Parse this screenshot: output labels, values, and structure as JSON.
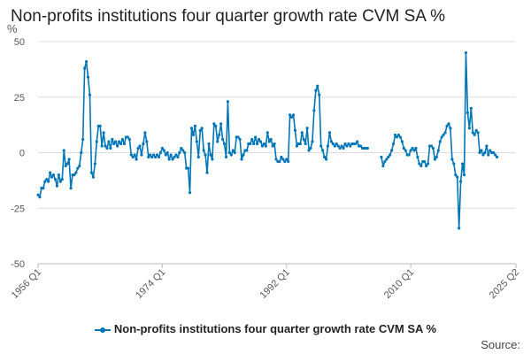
{
  "chart_data": {
    "type": "line",
    "title": "Non-profits institutions four quarter growth rate CVM SA %",
    "ylabel": "%",
    "xlabel": "",
    "ylim": [
      -50,
      50
    ],
    "yticks": [
      50,
      25,
      0,
      -25,
      -50
    ],
    "x_range": [
      1956.0,
      2025.25
    ],
    "xticks": [
      {
        "label": "1956 Q1",
        "value": 1956.0
      },
      {
        "label": "1974 Q1",
        "value": 1974.0
      },
      {
        "label": "1992 Q1",
        "value": 1992.0
      },
      {
        "label": "2010 Q1",
        "value": 2010.0
      },
      {
        "label": "2025 Q2",
        "value": 2025.25
      }
    ],
    "grid": true,
    "legend_position": "bottom",
    "series": [
      {
        "name": "Non-profits institutions four quarter growth rate CVM SA %",
        "color": "#0076b6",
        "points": [
          [
            1956.0,
            -19
          ],
          [
            1956.25,
            -20
          ],
          [
            1956.5,
            -16
          ],
          [
            1956.75,
            -16
          ],
          [
            1957.0,
            -13
          ],
          [
            1957.25,
            -12
          ],
          [
            1957.5,
            -13
          ],
          [
            1957.75,
            -9
          ],
          [
            1958.0,
            -11
          ],
          [
            1958.25,
            -10
          ],
          [
            1958.5,
            -12
          ],
          [
            1958.75,
            -15
          ],
          [
            1959.0,
            -10
          ],
          [
            1959.25,
            -13
          ],
          [
            1959.5,
            -12
          ],
          [
            1959.75,
            1
          ],
          [
            1960.0,
            -6
          ],
          [
            1960.25,
            -5
          ],
          [
            1960.5,
            -3
          ],
          [
            1960.75,
            -16
          ],
          [
            1961.0,
            -10
          ],
          [
            1961.25,
            -10
          ],
          [
            1961.5,
            -9
          ],
          [
            1961.75,
            -7
          ],
          [
            1962.0,
            -6
          ],
          [
            1962.25,
            0
          ],
          [
            1962.5,
            6
          ],
          [
            1962.75,
            38
          ],
          [
            1963.0,
            41
          ],
          [
            1963.25,
            34
          ],
          [
            1963.5,
            26
          ],
          [
            1963.75,
            -9
          ],
          [
            1964.0,
            -11
          ],
          [
            1964.25,
            -5
          ],
          [
            1964.5,
            5
          ],
          [
            1964.75,
            12
          ],
          [
            1965.0,
            12
          ],
          [
            1965.25,
            3
          ],
          [
            1965.5,
            9
          ],
          [
            1965.75,
            3
          ],
          [
            1966.0,
            2
          ],
          [
            1966.25,
            5
          ],
          [
            1966.5,
            2
          ],
          [
            1966.75,
            6
          ],
          [
            1967.0,
            4
          ],
          [
            1967.25,
            5
          ],
          [
            1967.5,
            3
          ],
          [
            1967.75,
            5
          ],
          [
            1968.0,
            4
          ],
          [
            1968.25,
            6
          ],
          [
            1968.5,
            4
          ],
          [
            1968.75,
            7
          ],
          [
            1969.0,
            7
          ],
          [
            1969.25,
            6
          ],
          [
            1969.5,
            -1
          ],
          [
            1969.75,
            -2
          ],
          [
            1970.0,
            -1
          ],
          [
            1970.25,
            -3
          ],
          [
            1970.5,
            2
          ],
          [
            1970.75,
            3
          ],
          [
            1971.0,
            -1
          ],
          [
            1971.25,
            4
          ],
          [
            1971.5,
            9
          ],
          [
            1971.75,
            5
          ],
          [
            1972.0,
            -2
          ],
          [
            1972.25,
            -1
          ],
          [
            1972.5,
            -2
          ],
          [
            1972.75,
            -1
          ],
          [
            1973.0,
            -2
          ],
          [
            1973.25,
            -1
          ],
          [
            1973.5,
            -2
          ],
          [
            1973.75,
            0
          ],
          [
            1974.0,
            2
          ],
          [
            1974.25,
            1
          ],
          [
            1974.5,
            -1
          ],
          [
            1974.75,
            0
          ],
          [
            1975.0,
            -3
          ],
          [
            1975.25,
            -1
          ],
          [
            1975.5,
            -3
          ],
          [
            1975.75,
            -2
          ],
          [
            1976.0,
            -1
          ],
          [
            1976.25,
            -2
          ],
          [
            1976.5,
            0
          ],
          [
            1976.75,
            2
          ],
          [
            1977.0,
            1
          ],
          [
            1977.25,
            0
          ],
          [
            1977.5,
            -7
          ],
          [
            1977.75,
            -7
          ],
          [
            1978.0,
            -18
          ],
          [
            1978.25,
            11
          ],
          [
            1978.5,
            8
          ],
          [
            1978.75,
            12
          ],
          [
            1979.0,
            5
          ],
          [
            1979.25,
            -2
          ],
          [
            1979.5,
            10
          ],
          [
            1979.75,
            11
          ],
          [
            1980.0,
            1
          ],
          [
            1980.25,
            -1
          ],
          [
            1980.5,
            -9
          ],
          [
            1980.75,
            4
          ],
          [
            1981.0,
            -1
          ],
          [
            1981.25,
            -3
          ],
          [
            1981.5,
            13
          ],
          [
            1981.75,
            12
          ],
          [
            1982.0,
            5
          ],
          [
            1982.25,
            8
          ],
          [
            1982.5,
            13
          ],
          [
            1982.75,
            6
          ],
          [
            1983.0,
            4
          ],
          [
            1983.25,
            -2
          ],
          [
            1983.5,
            23
          ],
          [
            1983.75,
            0
          ],
          [
            1984.0,
            -1
          ],
          [
            1984.25,
            1
          ],
          [
            1984.5,
            0
          ],
          [
            1984.75,
            7
          ],
          [
            1985.0,
            7
          ],
          [
            1985.25,
            6
          ],
          [
            1985.5,
            -3
          ],
          [
            1985.75,
            -1
          ],
          [
            1986.0,
            1
          ],
          [
            1986.25,
            1
          ],
          [
            1986.5,
            4
          ],
          [
            1986.75,
            4
          ],
          [
            1987.0,
            6
          ],
          [
            1987.25,
            4
          ],
          [
            1987.5,
            7
          ],
          [
            1987.75,
            4
          ],
          [
            1988.0,
            6
          ],
          [
            1988.25,
            5
          ],
          [
            1988.5,
            3
          ],
          [
            1988.75,
            4
          ],
          [
            1989.0,
            3
          ],
          [
            1989.25,
            9
          ],
          [
            1989.5,
            5
          ],
          [
            1989.75,
            6
          ],
          [
            1990.0,
            3
          ],
          [
            1990.25,
            4
          ],
          [
            1990.5,
            -3
          ],
          [
            1990.75,
            -4
          ],
          [
            1991.0,
            -4
          ],
          [
            1991.25,
            -2
          ],
          [
            1991.5,
            -3
          ],
          [
            1991.75,
            -4
          ],
          [
            1992.0,
            -3
          ],
          [
            1992.25,
            -4
          ],
          [
            1992.5,
            17
          ],
          [
            1992.75,
            16
          ],
          [
            1993.0,
            17
          ],
          [
            1993.25,
            10
          ],
          [
            1993.5,
            3
          ],
          [
            1993.75,
            4
          ],
          [
            1994.0,
            4
          ],
          [
            1994.25,
            9
          ],
          [
            1994.5,
            6
          ],
          [
            1994.75,
            4
          ],
          [
            1995.0,
            11
          ],
          [
            1995.25,
            1
          ],
          [
            1995.5,
            2
          ],
          [
            1995.75,
            5
          ],
          [
            1996.0,
            19
          ],
          [
            1996.25,
            28
          ],
          [
            1996.5,
            30
          ],
          [
            1996.75,
            26
          ],
          [
            1997.0,
            3
          ],
          [
            1997.25,
            1
          ],
          [
            1997.5,
            -2
          ],
          [
            1997.75,
            -3
          ],
          [
            1998.0,
            3
          ],
          [
            1998.25,
            9
          ],
          [
            1998.5,
            5
          ],
          [
            1998.75,
            4
          ],
          [
            1999.0,
            3
          ],
          [
            1999.25,
            4
          ],
          [
            1999.5,
            3
          ],
          [
            1999.75,
            2
          ],
          [
            2000.0,
            3
          ],
          [
            2000.25,
            2
          ],
          [
            2000.5,
            4
          ],
          [
            2000.75,
            3
          ],
          [
            2001.0,
            4
          ],
          [
            2001.25,
            3
          ],
          [
            2001.5,
            4
          ],
          [
            2001.75,
            4
          ],
          [
            2002.0,
            4
          ],
          [
            2002.25,
            5
          ],
          [
            2002.5,
            3
          ],
          [
            2002.75,
            3
          ],
          [
            2003.0,
            2
          ],
          [
            2003.25,
            2
          ],
          [
            2003.5,
            2
          ],
          [
            2003.75,
            2
          ],
          null,
          [
            2005.75,
            -2
          ],
          [
            2006.0,
            -6
          ],
          [
            2006.25,
            -4
          ],
          [
            2006.5,
            -3
          ],
          [
            2006.75,
            -2
          ],
          [
            2007.0,
            -1
          ],
          [
            2007.25,
            1
          ],
          [
            2007.5,
            4
          ],
          [
            2007.75,
            8
          ],
          [
            2008.0,
            7
          ],
          [
            2008.25,
            8
          ],
          [
            2008.5,
            7
          ],
          [
            2008.75,
            5
          ],
          [
            2009.0,
            2
          ],
          [
            2009.25,
            1
          ],
          [
            2009.5,
            -1
          ],
          [
            2009.75,
            -1
          ],
          [
            2010.0,
            1
          ],
          [
            2010.25,
            2
          ],
          [
            2010.5,
            1
          ],
          [
            2010.75,
            2
          ],
          [
            2011.0,
            -2
          ],
          [
            2011.25,
            -5
          ],
          [
            2011.5,
            -6
          ],
          [
            2011.75,
            -4
          ],
          [
            2012.0,
            -4
          ],
          [
            2012.25,
            -6
          ],
          [
            2012.5,
            -5
          ],
          [
            2012.75,
            3
          ],
          [
            2013.0,
            3
          ],
          [
            2013.25,
            2
          ],
          [
            2013.5,
            -3
          ],
          [
            2013.75,
            -2
          ],
          [
            2014.0,
            1
          ],
          [
            2014.25,
            5
          ],
          [
            2014.5,
            7
          ],
          [
            2014.75,
            8
          ],
          [
            2015.0,
            9
          ],
          [
            2015.25,
            12
          ],
          [
            2015.5,
            13
          ],
          [
            2015.75,
            11
          ],
          [
            2016.0,
            -3
          ],
          [
            2016.25,
            -5
          ],
          [
            2016.5,
            -10
          ],
          [
            2016.75,
            -11
          ],
          [
            2017.0,
            -34
          ],
          [
            2017.25,
            -13
          ],
          [
            2017.5,
            -5
          ],
          [
            2017.75,
            -10
          ],
          [
            2018.0,
            45
          ],
          [
            2018.25,
            18
          ],
          [
            2018.5,
            11
          ],
          [
            2018.75,
            20
          ],
          [
            2019.0,
            9
          ],
          [
            2019.25,
            8
          ],
          [
            2019.5,
            10
          ],
          [
            2019.75,
            9
          ],
          [
            2020.0,
            0
          ],
          [
            2020.25,
            1
          ],
          [
            2020.5,
            -1
          ],
          [
            2020.75,
            0
          ],
          [
            2021.0,
            3
          ],
          [
            2021.25,
            -1
          ],
          [
            2021.5,
            1
          ],
          [
            2021.75,
            0
          ],
          [
            2022.0,
            0
          ],
          [
            2022.25,
            -1
          ],
          [
            2022.5,
            -2
          ]
        ]
      }
    ]
  },
  "legend": {
    "label": "Non-profits institutions four quarter growth rate CVM SA %"
  },
  "footer": {
    "source_label": "Source:"
  }
}
